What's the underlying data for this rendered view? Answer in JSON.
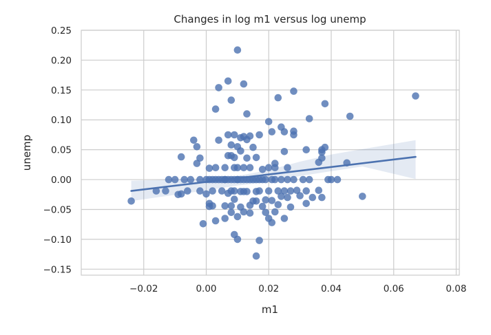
{
  "chart_data": {
    "type": "scatter",
    "title": "Changes in log m1 versus log unemp",
    "xlabel": "m1",
    "ylabel": "unemp",
    "xlim": [
      -0.04,
      0.081
    ],
    "ylim": [
      -0.16,
      0.25
    ],
    "grid": true,
    "x_ticks": [
      -0.02,
      0.0,
      0.02,
      0.04,
      0.06,
      0.08
    ],
    "x_tick_labels": [
      "−0.02",
      "0.00",
      "0.02",
      "0.04",
      "0.06",
      "0.08"
    ],
    "y_ticks": [
      0.25,
      0.2,
      0.15,
      0.1,
      0.05,
      0.0,
      -0.05,
      -0.1,
      -0.15
    ],
    "y_tick_labels": [
      "0.25",
      "0.20",
      "0.15",
      "0.10",
      "0.05",
      "0.00",
      "−0.05",
      "−0.10",
      "−0.15"
    ],
    "colors": {
      "points": "#4c72b0",
      "regression_line": "#4c72b0",
      "confidence_band": "#4c72b0",
      "grid": "#cccccc",
      "axes_edge": "#cccccc"
    },
    "regression": {
      "x_range": [
        -0.024,
        0.067
      ],
      "y_at_x_start": -0.019,
      "y_at_x_end": 0.038,
      "ci_upper": [
        [
          -0.024,
          -0.002
        ],
        [
          0.0,
          0.002
        ],
        [
          0.01,
          0.006
        ],
        [
          0.02,
          0.016
        ],
        [
          0.03,
          0.03
        ],
        [
          0.04,
          0.042
        ],
        [
          0.05,
          0.051
        ],
        [
          0.067,
          0.066
        ]
      ],
      "ci_lower": [
        [
          -0.024,
          -0.036
        ],
        [
          0.0,
          -0.018
        ],
        [
          0.01,
          -0.01
        ],
        [
          0.02,
          -0.004
        ],
        [
          0.03,
          0.006
        ],
        [
          0.04,
          0.014
        ],
        [
          0.05,
          0.022
        ],
        [
          0.067,
          0.001
        ]
      ]
    },
    "points": [
      [
        -0.024,
        -0.036
      ],
      [
        -0.016,
        -0.019
      ],
      [
        -0.013,
        -0.019
      ],
      [
        -0.012,
        0.0
      ],
      [
        -0.01,
        0.0
      ],
      [
        -0.009,
        -0.025
      ],
      [
        -0.008,
        -0.024
      ],
      [
        -0.008,
        0.038
      ],
      [
        -0.007,
        0.0
      ],
      [
        -0.006,
        -0.019
      ],
      [
        -0.005,
        0.0
      ],
      [
        -0.004,
        0.066
      ],
      [
        -0.003,
        0.055
      ],
      [
        -0.003,
        0.027
      ],
      [
        -0.002,
        0.036
      ],
      [
        -0.002,
        -0.019
      ],
      [
        -0.002,
        0.0
      ],
      [
        -0.001,
        -0.074
      ],
      [
        0.0,
        0.0
      ],
      [
        0.0,
        -0.024
      ],
      [
        0.001,
        0.0
      ],
      [
        0.001,
        -0.045
      ],
      [
        0.001,
        -0.04
      ],
      [
        0.001,
        0.019
      ],
      [
        0.002,
        -0.019
      ],
      [
        0.002,
        0.0
      ],
      [
        0.002,
        -0.044
      ],
      [
        0.003,
        0.118
      ],
      [
        0.003,
        0.0
      ],
      [
        0.003,
        -0.069
      ],
      [
        0.003,
        0.02
      ],
      [
        0.004,
        0.066
      ],
      [
        0.004,
        0.0
      ],
      [
        0.004,
        0.154
      ],
      [
        0.005,
        -0.019
      ],
      [
        0.005,
        0.0
      ],
      [
        0.006,
        -0.065
      ],
      [
        0.006,
        0.0
      ],
      [
        0.006,
        0.02
      ],
      [
        0.006,
        -0.044
      ],
      [
        0.006,
        0.0
      ],
      [
        0.007,
        0.075
      ],
      [
        0.007,
        -0.023
      ],
      [
        0.007,
        0.04
      ],
      [
        0.007,
        0.0
      ],
      [
        0.007,
        0.165
      ],
      [
        0.008,
        -0.019
      ],
      [
        0.008,
        0.058
      ],
      [
        0.008,
        0.133
      ],
      [
        0.008,
        -0.044
      ],
      [
        0.008,
        -0.055
      ],
      [
        0.008,
        0.04
      ],
      [
        0.008,
        0.0
      ],
      [
        0.009,
        0.075
      ],
      [
        0.009,
        0.02
      ],
      [
        0.009,
        -0.019
      ],
      [
        0.009,
        -0.092
      ],
      [
        0.009,
        0.0
      ],
      [
        0.009,
        0.037
      ],
      [
        0.009,
        -0.033
      ],
      [
        0.01,
        0.217
      ],
      [
        0.01,
        -0.062
      ],
      [
        0.01,
        0.055
      ],
      [
        0.01,
        0.02
      ],
      [
        0.01,
        -0.1
      ],
      [
        0.01,
        0.0
      ],
      [
        0.01,
        0.0
      ],
      [
        0.011,
        0.07
      ],
      [
        0.011,
        -0.02
      ],
      [
        0.011,
        -0.046
      ],
      [
        0.011,
        0.048
      ],
      [
        0.011,
        0.0
      ],
      [
        0.012,
        0.16
      ],
      [
        0.012,
        0.072
      ],
      [
        0.012,
        -0.054
      ],
      [
        0.012,
        0.02
      ],
      [
        0.012,
        0.0
      ],
      [
        0.012,
        -0.02
      ],
      [
        0.013,
        0.036
      ],
      [
        0.013,
        0.11
      ],
      [
        0.013,
        -0.02
      ],
      [
        0.013,
        0.0
      ],
      [
        0.013,
        0.067
      ],
      [
        0.014,
        0.073
      ],
      [
        0.014,
        -0.056
      ],
      [
        0.014,
        0.0
      ],
      [
        0.014,
        -0.043
      ],
      [
        0.014,
        0.02
      ],
      [
        0.015,
        -0.036
      ],
      [
        0.015,
        0.0
      ],
      [
        0.015,
        0.054
      ],
      [
        0.016,
        -0.128
      ],
      [
        0.016,
        0.0
      ],
      [
        0.016,
        -0.02
      ],
      [
        0.016,
        -0.036
      ],
      [
        0.016,
        0.037
      ],
      [
        0.017,
        0.0
      ],
      [
        0.017,
        0.075
      ],
      [
        0.017,
        -0.102
      ],
      [
        0.017,
        -0.019
      ],
      [
        0.018,
        -0.045
      ],
      [
        0.018,
        0.017
      ],
      [
        0.018,
        0.0
      ],
      [
        0.019,
        -0.055
      ],
      [
        0.019,
        0.0
      ],
      [
        0.019,
        -0.034
      ],
      [
        0.02,
        0.097
      ],
      [
        0.02,
        0.02
      ],
      [
        0.02,
        -0.065
      ],
      [
        0.02,
        -0.019
      ],
      [
        0.021,
        0.0
      ],
      [
        0.021,
        0.08
      ],
      [
        0.021,
        -0.035
      ],
      [
        0.021,
        -0.072
      ],
      [
        0.022,
        0.0
      ],
      [
        0.022,
        0.02
      ],
      [
        0.022,
        -0.054
      ],
      [
        0.022,
        0.027
      ],
      [
        0.023,
        0.137
      ],
      [
        0.023,
        -0.019
      ],
      [
        0.023,
        -0.042
      ],
      [
        0.024,
        0.0
      ],
      [
        0.024,
        -0.028
      ],
      [
        0.024,
        0.088
      ],
      [
        0.025,
        0.08
      ],
      [
        0.025,
        0.047
      ],
      [
        0.025,
        -0.019
      ],
      [
        0.025,
        -0.065
      ],
      [
        0.026,
        0.0
      ],
      [
        0.026,
        -0.03
      ],
      [
        0.026,
        0.02
      ],
      [
        0.027,
        -0.046
      ],
      [
        0.027,
        -0.019
      ],
      [
        0.028,
        0.148
      ],
      [
        0.028,
        0.081
      ],
      [
        0.028,
        0.075
      ],
      [
        0.028,
        0.0
      ],
      [
        0.029,
        -0.018
      ],
      [
        0.03,
        -0.027
      ],
      [
        0.031,
        0.0
      ],
      [
        0.032,
        0.05
      ],
      [
        0.032,
        -0.04
      ],
      [
        0.032,
        -0.019
      ],
      [
        0.033,
        0.0
      ],
      [
        0.033,
        0.102
      ],
      [
        0.034,
        -0.03
      ],
      [
        0.036,
        -0.018
      ],
      [
        0.036,
        0.029
      ],
      [
        0.037,
        0.046
      ],
      [
        0.037,
        0.036
      ],
      [
        0.037,
        0.05
      ],
      [
        0.037,
        -0.03
      ],
      [
        0.038,
        0.127
      ],
      [
        0.038,
        0.054
      ],
      [
        0.039,
        0.0
      ],
      [
        0.04,
        0.0
      ],
      [
        0.042,
        0.0
      ],
      [
        0.045,
        0.028
      ],
      [
        0.046,
        0.106
      ],
      [
        0.05,
        -0.028
      ],
      [
        0.067,
        0.14
      ]
    ]
  }
}
